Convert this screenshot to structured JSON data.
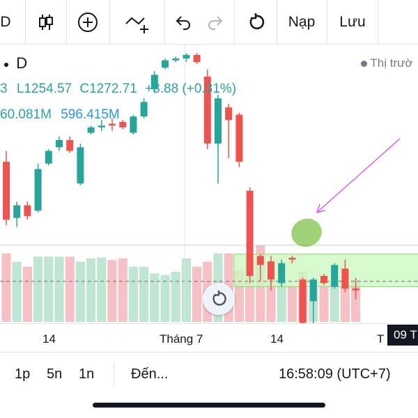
{
  "toolbar": {
    "items": [
      {
        "name": "interval-button",
        "label": "D"
      },
      {
        "name": "candle-icon"
      },
      {
        "name": "add-indicator-icon"
      },
      {
        "name": "draw-line-icon"
      },
      {
        "name": "undo-icon"
      },
      {
        "name": "redo-icon"
      },
      {
        "name": "reset-icon"
      }
    ],
    "load_label": "Nạp",
    "save_label": "Lưu"
  },
  "legend": {
    "interval": "D",
    "ohlc_tail": "3",
    "low": "L1254.57",
    "close": "C1272.71",
    "change": "+3.88 (+0.31%)",
    "volume": "60.081M",
    "volume_ma": "596.415M",
    "market_status": "Thị trườ"
  },
  "colors": {
    "up": "#26a69a",
    "down": "#ef5350",
    "zone_fill": "#ccf7c0",
    "ellipse": "#7fc24a",
    "arrow": "#e040fb"
  },
  "chart_data": {
    "type": "candlestick",
    "candles": [
      {
        "o": 1292,
        "h": 1298,
        "l": 1257,
        "c": 1260
      },
      {
        "o": 1261,
        "h": 1270,
        "l": 1256,
        "c": 1268
      },
      {
        "o": 1268,
        "h": 1270,
        "l": 1260,
        "c": 1262
      },
      {
        "o": 1265,
        "h": 1291,
        "l": 1264,
        "c": 1288
      },
      {
        "o": 1291,
        "h": 1299,
        "l": 1290,
        "c": 1298
      },
      {
        "o": 1300,
        "h": 1306,
        "l": 1298,
        "c": 1304
      },
      {
        "o": 1304,
        "h": 1306,
        "l": 1297,
        "c": 1298
      },
      {
        "o": 1280,
        "h": 1302,
        "l": 1279,
        "c": 1300
      },
      {
        "o": 1308,
        "h": 1312,
        "l": 1307,
        "c": 1311
      },
      {
        "o": 1311,
        "h": 1315,
        "l": 1309,
        "c": 1312
      },
      {
        "o": 1313,
        "h": 1316,
        "l": 1309,
        "c": 1312
      },
      {
        "o": 1314,
        "h": 1315,
        "l": 1310,
        "c": 1311
      },
      {
        "o": 1308,
        "h": 1318,
        "l": 1307,
        "c": 1317
      },
      {
        "o": 1317,
        "h": 1327,
        "l": 1316,
        "c": 1325
      },
      {
        "o": 1332,
        "h": 1342,
        "l": 1330,
        "c": 1340
      },
      {
        "o": 1344,
        "h": 1349,
        "l": 1343,
        "c": 1348
      },
      {
        "o": 1348,
        "h": 1350,
        "l": 1347,
        "c": 1349
      },
      {
        "o": 1349,
        "h": 1352,
        "l": 1347,
        "c": 1351
      },
      {
        "o": 1351,
        "h": 1352,
        "l": 1346,
        "c": 1347
      },
      {
        "o": 1339,
        "h": 1343,
        "l": 1299,
        "c": 1302
      },
      {
        "o": 1302,
        "h": 1329,
        "l": 1280,
        "c": 1327
      },
      {
        "o": 1322,
        "h": 1324,
        "l": 1294,
        "c": 1315
      },
      {
        "o": 1318,
        "h": 1319,
        "l": 1289,
        "c": 1292
      },
      {
        "o": 1276,
        "h": 1278,
        "l": 1225,
        "c": 1229
      },
      {
        "o": 1240,
        "h": 1241,
        "l": 1226,
        "c": 1235
      },
      {
        "o": 1237,
        "h": 1240,
        "l": 1221,
        "c": 1227
      },
      {
        "o": 1225,
        "h": 1238,
        "l": 1223,
        "c": 1236
      },
      {
        "o": 1239,
        "h": 1240,
        "l": 1236,
        "c": 1238
      },
      {
        "o": 1227,
        "h": 1228,
        "l": 1191,
        "c": 1203
      },
      {
        "o": 1215,
        "h": 1228,
        "l": 1189,
        "c": 1227
      },
      {
        "o": 1229,
        "h": 1230,
        "l": 1224,
        "c": 1225
      },
      {
        "o": 1223,
        "h": 1236,
        "l": 1222,
        "c": 1235
      },
      {
        "o": 1233,
        "h": 1238,
        "l": 1220,
        "c": 1222
      },
      {
        "o": 1222,
        "h": 1228,
        "l": 1216,
        "c": 1221
      }
    ],
    "volume": [
      0.82,
      0.72,
      0.66,
      0.78,
      0.78,
      0.78,
      0.78,
      0.72,
      0.76,
      0.77,
      0.74,
      0.76,
      0.66,
      0.66,
      0.58,
      0.56,
      0.6,
      0.76,
      0.66,
      0.72,
      0.82,
      0.82,
      0.62,
      0.74,
      0.92,
      0.52,
      0.52,
      0.42,
      0.6,
      0.4,
      0.44,
      0.46,
      0.54,
      0.5
    ],
    "current_price_level": 1226,
    "zone": {
      "low": 1223,
      "high": 1241
    },
    "x_ticks": [
      "14",
      "Tháng 7",
      "14",
      "T"
    ]
  },
  "status": {
    "date_badge": "09 T"
  },
  "bottom": {
    "range_1p": "1p",
    "range_5n": "5n",
    "range_1n": "1n",
    "goto": "Đến...",
    "clock": "16:58:09 (UTC+7)"
  }
}
